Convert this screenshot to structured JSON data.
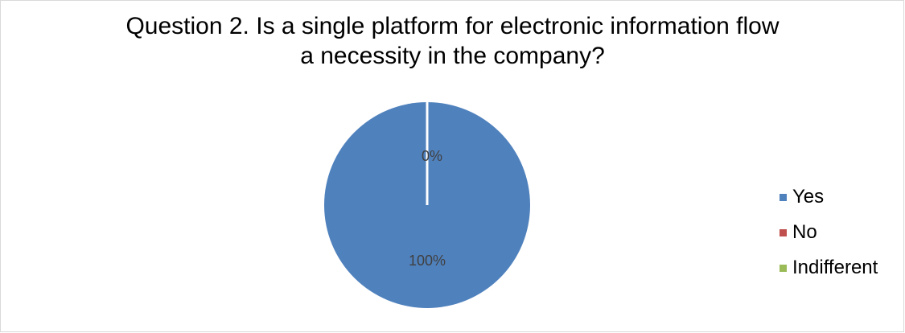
{
  "chart_data": {
    "type": "pie",
    "title_lines": [
      "Question 2. Is a single platform for electronic information flow",
      "a necessity in the company?"
    ],
    "categories": [
      "Yes",
      "No",
      "Indifferent"
    ],
    "values": [
      100,
      0,
      0
    ],
    "data_labels": [
      "100%",
      "0%",
      "0%"
    ],
    "colors": [
      "#4f81bd",
      "#c0504d",
      "#9bbb59"
    ],
    "legend_position": "right"
  }
}
